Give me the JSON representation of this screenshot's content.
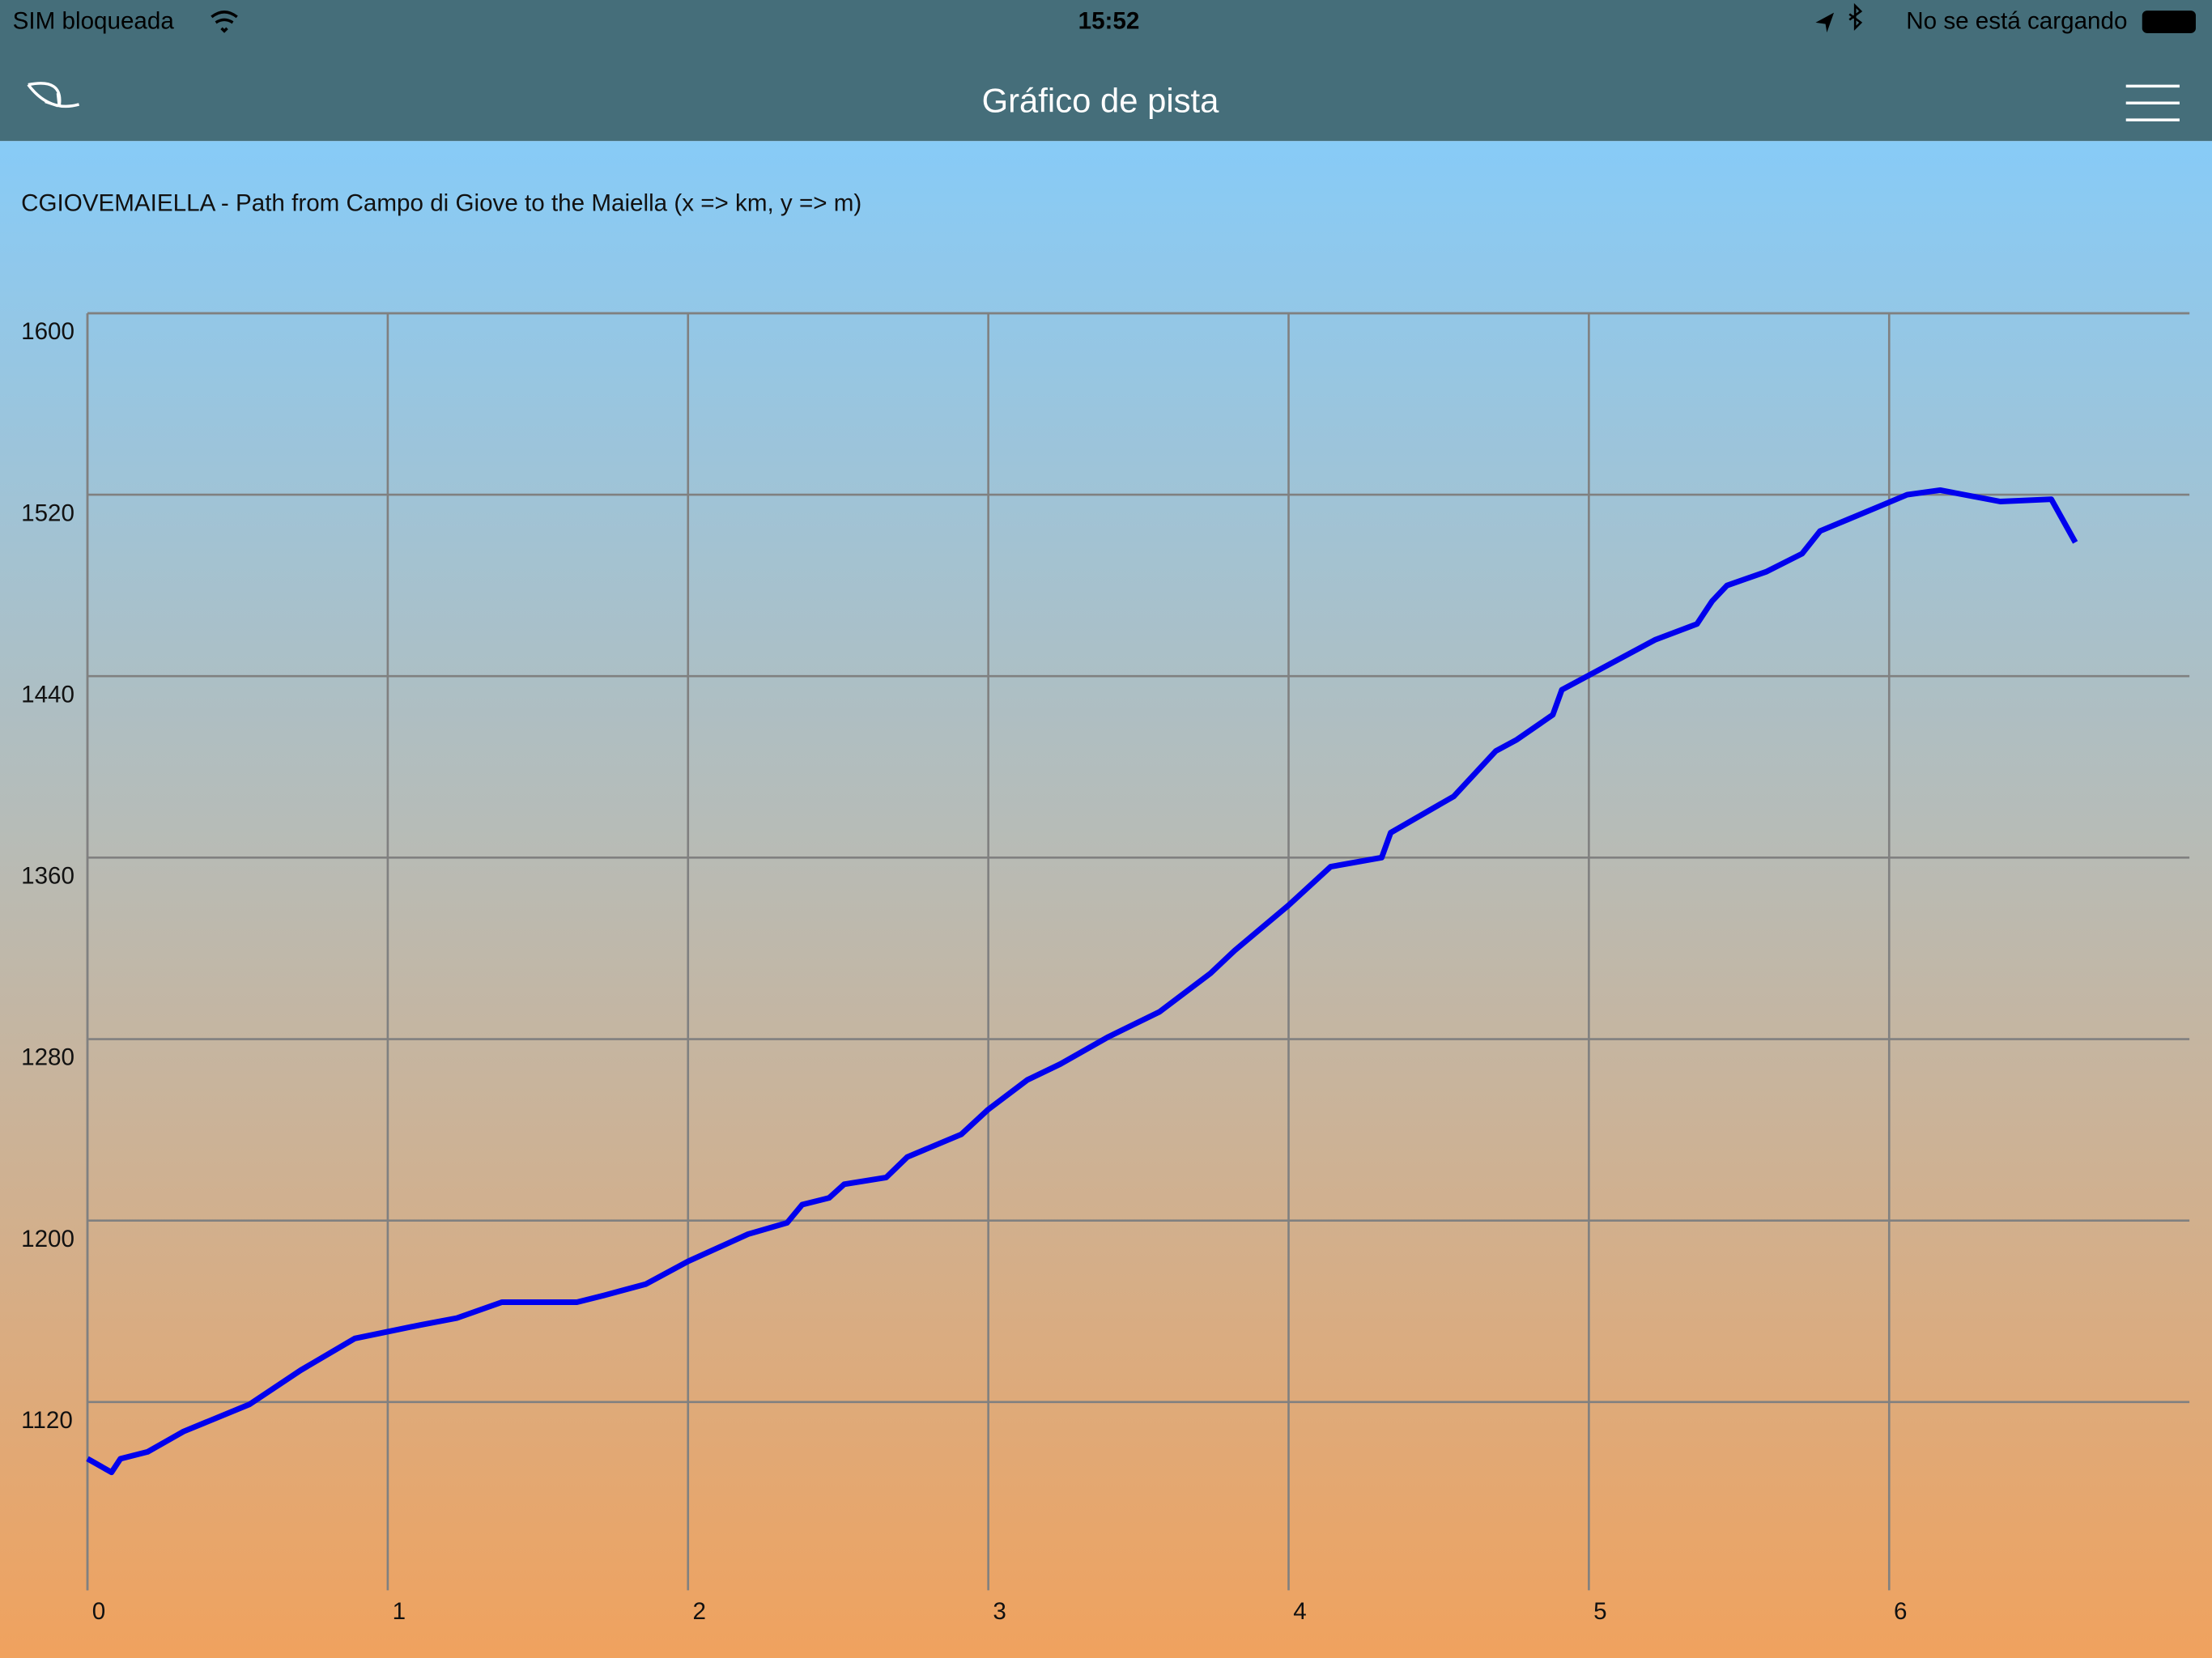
{
  "status_bar": {
    "carrier": "SIM bloqueada",
    "time": "15:52",
    "battery": "No se está cargando"
  },
  "nav_bar": {
    "title": "Gráfico de pista"
  },
  "chart_data": {
    "type": "line",
    "title": "CGIOVEMAIELLA - Path from Campo di Giove to the Maiella (x => km, y => m)",
    "x": [
      0,
      0.08,
      0.11,
      0.2,
      0.32,
      0.54,
      0.71,
      0.89,
      1.11,
      1.23,
      1.38,
      1.63,
      1.72,
      1.86,
      2.0,
      2.2,
      2.33,
      2.38,
      2.47,
      2.52,
      2.66,
      2.73,
      2.91,
      3.0,
      3.13,
      3.24,
      3.4,
      3.57,
      3.74,
      3.82,
      4.0,
      4.14,
      4.31,
      4.34,
      4.55,
      4.69,
      4.76,
      4.88,
      4.91,
      5.22,
      5.36,
      5.41,
      5.46,
      5.59,
      5.71,
      5.77,
      5.97,
      6.06,
      6.17,
      6.37,
      6.54,
      6.62
    ],
    "series": [
      {
        "color": "#0000ee",
        "values": [
          1095,
          1089,
          1095,
          1098,
          1107,
          1119,
          1134,
          1148,
          1154,
          1157,
          1164,
          1164,
          1167,
          1172,
          1182,
          1194,
          1199,
          1207,
          1210,
          1216,
          1219,
          1228,
          1238,
          1249,
          1262,
          1269,
          1281,
          1292,
          1309,
          1319,
          1339,
          1356,
          1360,
          1371,
          1387,
          1407,
          1412,
          1423,
          1434,
          1456,
          1463,
          1473,
          1480,
          1486,
          1494,
          1504,
          1515,
          1520,
          1522,
          1517,
          1518,
          1499
        ]
      }
    ],
    "xlim": [
      0,
      7
    ],
    "xticks": [
      0,
      1,
      2,
      3,
      4,
      5,
      6
    ],
    "ylim": [
      1037,
      1600
    ],
    "yticks": [
      1120,
      1200,
      1280,
      1360,
      1440,
      1520,
      1600
    ],
    "grid": true
  }
}
